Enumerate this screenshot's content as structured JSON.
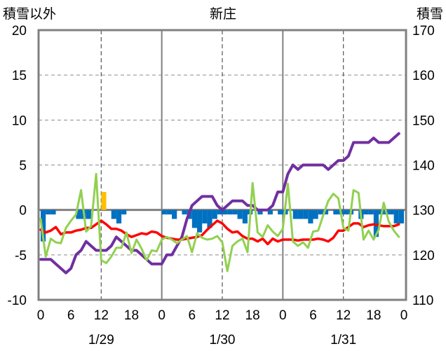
{
  "chart_data": {
    "type": "line",
    "title": "新庄",
    "left_axis_label": "積雪以外",
    "right_axis_label": "積雪",
    "left_ylim": [
      -10,
      20
    ],
    "left_ticks": [
      20,
      15,
      10,
      5,
      0,
      -5,
      -10
    ],
    "right_ylim": [
      110,
      170
    ],
    "right_ticks": [
      170,
      160,
      150,
      140,
      130,
      120,
      110
    ],
    "x_range": [
      0,
      72
    ],
    "x_ticks": [
      {
        "x": 0,
        "label": "0"
      },
      {
        "x": 6,
        "label": "6"
      },
      {
        "x": 12,
        "label": "12"
      },
      {
        "x": 18,
        "label": "18"
      },
      {
        "x": 24,
        "label": "0"
      },
      {
        "x": 30,
        "label": "6"
      },
      {
        "x": 36,
        "label": "12"
      },
      {
        "x": 42,
        "label": "18"
      },
      {
        "x": 48,
        "label": "0"
      },
      {
        "x": 54,
        "label": "6"
      },
      {
        "x": 60,
        "label": "12"
      },
      {
        "x": 66,
        "label": "18"
      },
      {
        "x": 72,
        "label": "0"
      }
    ],
    "day_boundaries": [
      24,
      48
    ],
    "dashed_lines": [
      12,
      36,
      60
    ],
    "date_labels": [
      {
        "x": 12,
        "label": "1/29"
      },
      {
        "x": 36,
        "label": "1/30"
      },
      {
        "x": 60,
        "label": "1/31"
      }
    ],
    "grid": "horizontal dashed",
    "colors": {
      "temperature": "#ff0000",
      "green": "#92d050",
      "snow_depth": "#7030a0",
      "bars_negative": "#0070c0",
      "bars_positive": "#ffc000",
      "frame": "#808080"
    },
    "series": [
      {
        "key": "temperature",
        "axis": "left",
        "x": [
          0,
          1,
          2,
          3,
          4,
          5,
          6,
          7,
          8,
          9,
          10,
          11,
          12,
          13,
          14,
          15,
          16,
          17,
          18,
          19,
          20,
          21,
          22,
          23,
          24,
          25,
          26,
          27,
          28,
          29,
          30,
          31,
          32,
          33,
          34,
          35,
          36,
          37,
          38,
          39,
          40,
          41,
          42,
          43,
          44,
          45,
          46,
          47,
          48,
          49,
          50,
          51,
          52,
          53,
          54,
          55,
          56,
          57,
          58,
          59,
          60,
          61,
          62,
          63,
          64,
          65,
          66,
          67,
          68,
          69,
          70,
          71
        ],
        "values": [
          -2.2,
          -2.5,
          -2.3,
          -1.9,
          -2.7,
          -2.5,
          -2.5,
          -2.3,
          -2.2,
          -2.0,
          -2.0,
          -1.6,
          -1.2,
          -1.6,
          -2.1,
          -2.1,
          -2.3,
          -2.7,
          -3.0,
          -2.8,
          -2.6,
          -2.7,
          -2.4,
          -2.5,
          -2.9,
          -3.1,
          -3.2,
          -3.3,
          -3.3,
          -3.2,
          -3.1,
          -3.0,
          -2.8,
          -2.2,
          -1.7,
          -1.2,
          -1.5,
          -2.1,
          -2.5,
          -2.4,
          -2.9,
          -3.2,
          -3.2,
          -3.5,
          -3.2,
          -3.8,
          -3.2,
          -3.5,
          -3.3,
          -3.3,
          -3.3,
          -3.4,
          -3.3,
          -3.3,
          -3.3,
          -3.2,
          -3.3,
          -3.5,
          -3.1,
          -2.3,
          -2.3,
          -1.9,
          -1.5,
          -1.5,
          -1.9,
          -1.7,
          -1.6,
          -1.7,
          -1.8,
          -1.8,
          -1.8,
          -1.6
        ]
      },
      {
        "key": "green",
        "axis": "left",
        "x": [
          0,
          1,
          2,
          3,
          4,
          5,
          6,
          7,
          8,
          9,
          10,
          11,
          12,
          13,
          14,
          15,
          16,
          17,
          18,
          19,
          20,
          21,
          22,
          23,
          24,
          25,
          26,
          27,
          28,
          29,
          30,
          31,
          32,
          33,
          34,
          35,
          36,
          37,
          38,
          39,
          40,
          41,
          42,
          43,
          44,
          45,
          46,
          47,
          48,
          49,
          50,
          51,
          52,
          53,
          54,
          55,
          56,
          57,
          58,
          59,
          60,
          61,
          62,
          63,
          64,
          65,
          66,
          67,
          68,
          69,
          70,
          71
        ],
        "values": [
          -1.0,
          -5.2,
          -3.2,
          -3.6,
          -3.7,
          -2.0,
          -1.2,
          -0.5,
          2.2,
          -2.4,
          -1.8,
          4.0,
          -5.6,
          -5.9,
          -5.2,
          -4.2,
          -4.2,
          -2.5,
          -4.8,
          -3.3,
          -4.3,
          -5.6,
          -4.5,
          -4.6,
          -3.3,
          -3.0,
          -3.3,
          -3.7,
          -3.3,
          -2.9,
          -4.7,
          -2.6,
          -3.1,
          -3.3,
          -3.2,
          -2.9,
          -3.6,
          -6.8,
          -4.0,
          -3.5,
          -3.2,
          -4.7,
          3.0,
          -2.5,
          -3.0,
          -1.7,
          -2.4,
          -2.9,
          -2.1,
          2.9,
          -3.5,
          -4.0,
          -3.6,
          -4.2,
          -2.4,
          -2.3,
          -0.6,
          1.0,
          1.8,
          1.3,
          -2.0,
          -2.3,
          2.2,
          1.9,
          -3.3,
          -2.3,
          -3.3,
          -2.2,
          0.8,
          -1.3,
          -2.3,
          -3.0
        ]
      },
      {
        "key": "snow_depth",
        "axis": "right",
        "x": [
          0,
          1,
          2,
          3,
          4,
          5,
          6,
          7,
          8,
          9,
          10,
          11,
          12,
          13,
          14,
          15,
          16,
          17,
          18,
          19,
          20,
          21,
          22,
          23,
          24,
          25,
          26,
          27,
          28,
          29,
          30,
          31,
          32,
          33,
          34,
          35,
          36,
          37,
          38,
          39,
          40,
          41,
          42,
          43,
          44,
          45,
          46,
          47,
          48,
          49,
          50,
          51,
          52,
          53,
          54,
          55,
          56,
          57,
          58,
          59,
          60,
          61,
          62,
          63,
          64,
          65,
          66,
          67,
          68,
          69,
          70,
          71
        ],
        "values": [
          119,
          119,
          119,
          118,
          117,
          116,
          117,
          120,
          121,
          123,
          122,
          121,
          121,
          121,
          122,
          124,
          123,
          122,
          121,
          121,
          120,
          119,
          118,
          118,
          118,
          120,
          120,
          122,
          124,
          128,
          131,
          132,
          133,
          133,
          133,
          131,
          130,
          131,
          132,
          132,
          132,
          131,
          131,
          130,
          130,
          130,
          131,
          134,
          134,
          138,
          140,
          139,
          140,
          140,
          140,
          140,
          140,
          139,
          140,
          141,
          141,
          142,
          145,
          145,
          145,
          145,
          146,
          145,
          145,
          145,
          146,
          147
        ]
      }
    ],
    "bars": {
      "axis": "left",
      "x": [
        0,
        1,
        2,
        7,
        8,
        9,
        12,
        14,
        15,
        16,
        24,
        25,
        26,
        28,
        29,
        30,
        31,
        32,
        33,
        34,
        35,
        36,
        37,
        38,
        39,
        40,
        41,
        43,
        45,
        47,
        48,
        50,
        51,
        52,
        53,
        54,
        55,
        56,
        58,
        59,
        60,
        61,
        63,
        64,
        65,
        66,
        67,
        68,
        69,
        70,
        71
      ],
      "values": [
        -3.5,
        -0.5,
        -0.5,
        -1.0,
        -1.0,
        -1.0,
        2.0,
        -1.0,
        -1.5,
        -0.5,
        -0.5,
        -0.5,
        -1.0,
        -0.5,
        -1.0,
        -2.0,
        -2.5,
        -1.5,
        -2.0,
        -1.0,
        -0.5,
        -0.5,
        -0.5,
        -0.5,
        -1.0,
        -1.5,
        -0.5,
        -0.5,
        -0.5,
        -0.5,
        -0.5,
        -1.0,
        -1.0,
        -1.0,
        -1.5,
        -1.0,
        -0.5,
        -0.5,
        -0.5,
        -0.5,
        -0.5,
        -0.5,
        -1.0,
        -0.5,
        -0.5,
        -3.0,
        -0.5,
        -0.5,
        -0.5,
        -1.5,
        -1.5
      ]
    }
  }
}
